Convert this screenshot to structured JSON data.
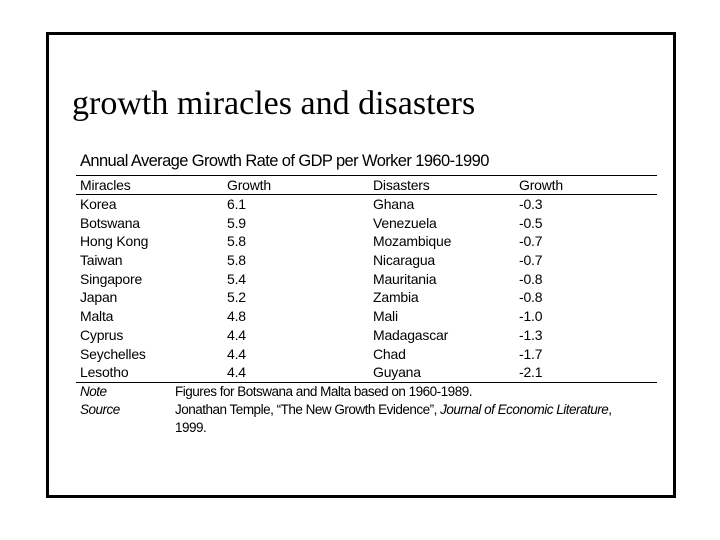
{
  "slide": {
    "title": "growth miracles and disasters"
  },
  "table": {
    "caption": "Annual Average Growth Rate of GDP per Worker 1960-1990",
    "headers": {
      "miracles": "Miracles",
      "growth1": "Growth",
      "disasters": "Disasters",
      "growth2": "Growth"
    },
    "rows": [
      {
        "miracle": "Korea",
        "growth1": "6.1",
        "disaster": "Ghana",
        "growth2": "-0.3"
      },
      {
        "miracle": "Botswana",
        "growth1": "5.9",
        "disaster": "Venezuela",
        "growth2": "-0.5"
      },
      {
        "miracle": "Hong Kong",
        "growth1": "5.8",
        "disaster": "Mozambique",
        "growth2": "-0.7"
      },
      {
        "miracle": "Taiwan",
        "growth1": "5.8",
        "disaster": "Nicaragua",
        "growth2": "-0.7"
      },
      {
        "miracle": "Singapore",
        "growth1": "5.4",
        "disaster": "Mauritania",
        "growth2": "-0.8"
      },
      {
        "miracle": "Japan",
        "growth1": "5.2",
        "disaster": "Zambia",
        "growth2": "-0.8"
      },
      {
        "miracle": "Malta",
        "growth1": "4.8",
        "disaster": "Mali",
        "growth2": "-1.0"
      },
      {
        "miracle": "Cyprus",
        "growth1": "4.4",
        "disaster": "Madagascar",
        "growth2": "-1.3"
      },
      {
        "miracle": "Seychelles",
        "growth1": "4.4",
        "disaster": "Chad",
        "growth2": "-1.7"
      },
      {
        "miracle": "Lesotho",
        "growth1": "4.4",
        "disaster": "Guyana",
        "growth2": "-2.1"
      }
    ]
  },
  "notes": {
    "note_label": "Note",
    "note_text": "Figures for Botswana and Malta based on 1960-1989.",
    "source_label": "Source",
    "source_prefix": "Jonathan Temple, “The New Growth Evidence”, ",
    "source_journal": "Journal of Economic Literature",
    "source_suffix": ",",
    "source_year": "1999."
  }
}
